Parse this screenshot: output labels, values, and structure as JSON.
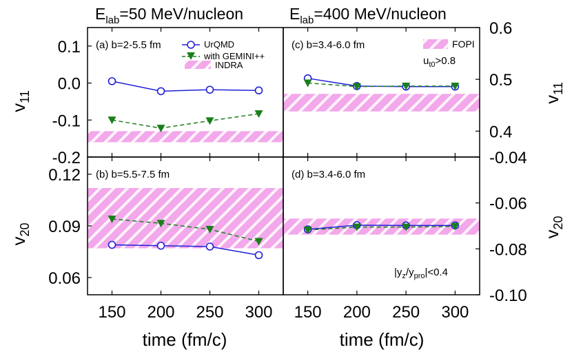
{
  "figure": {
    "col_titles": [
      {
        "base": "E",
        "sub": "lab",
        "rest": "=50 MeV/nucleon"
      },
      {
        "base": "E",
        "sub": "lab",
        "rest": "=400 MeV/nucleon"
      }
    ],
    "xlabel": "time (fm/c)",
    "y_left_top": {
      "base": "v",
      "sub": "11"
    },
    "y_left_bottom": {
      "base": "v",
      "sub": "20"
    },
    "y_right_top": {
      "base": "v",
      "sub": "11"
    },
    "y_right_bottom": {
      "base": "v",
      "sub": "20"
    },
    "legend_left": {
      "urqmd": "UrQMD",
      "gemini": "with GEMINI++",
      "indra": "INDRA"
    },
    "legend_right": {
      "fopi": "FOPI",
      "cut_base": "u",
      "cut_sub": "t0",
      "cut_rest": ">0.8"
    },
    "cut_bottom": {
      "pre": "|y",
      "sub1": "z",
      "mid": "/y",
      "sub2": "pro",
      "rest": "|<0.4"
    }
  },
  "colors": {
    "urqmd": "#1f1fd6",
    "gemini": "#1a7f1a",
    "band": "#f2a8ea",
    "band_stripe": "#ffffff"
  },
  "chart_data": [
    {
      "id": "a",
      "type": "line",
      "label": "(a) b=2-5.5 fm",
      "x": [
        150,
        200,
        250,
        300
      ],
      "xlim": [
        125,
        325
      ],
      "ylim": [
        -0.2,
        0.15
      ],
      "yticks": [
        -0.2,
        -0.1,
        0.0,
        0.1
      ],
      "tick_labels": [
        "-0.2",
        "-0.1",
        "0.0",
        "0.1"
      ],
      "series": [
        {
          "name": "UrQMD",
          "values": [
            0.005,
            -0.022,
            -0.018,
            -0.02
          ]
        },
        {
          "name": "with GEMINI++",
          "values": [
            -0.1,
            -0.122,
            -0.102,
            -0.083
          ]
        }
      ],
      "band": {
        "name": "INDRA",
        "range": [
          -0.16,
          -0.13
        ]
      }
    },
    {
      "id": "c",
      "type": "line",
      "label": "(c) b=3.4-6.0 fm",
      "x": [
        150,
        200,
        250,
        300
      ],
      "xlim": [
        125,
        325
      ],
      "ylim": [
        0.35,
        0.6
      ],
      "yticks": [
        0.4,
        0.5,
        0.6
      ],
      "tick_labels": [
        "0.4",
        "0.5",
        "0.6"
      ],
      "series": [
        {
          "name": "UrQMD",
          "values": [
            0.502,
            0.487,
            0.486,
            0.486
          ]
        },
        {
          "name": "with GEMINI++",
          "values": [
            0.493,
            0.486,
            0.487,
            0.487
          ]
        }
      ],
      "band": {
        "name": "FOPI",
        "range": [
          0.438,
          0.472
        ]
      }
    },
    {
      "id": "b",
      "type": "line",
      "label": "(b) b=5.5-7.5 fm",
      "x": [
        150,
        200,
        250,
        300
      ],
      "xlim": [
        125,
        325
      ],
      "ylim": [
        0.05,
        0.13
      ],
      "yticks": [
        0.06,
        0.09,
        0.12
      ],
      "tick_labels": [
        "0.06",
        "0.09",
        "0.12"
      ],
      "series": [
        {
          "name": "UrQMD",
          "values": [
            0.079,
            0.0785,
            0.078,
            0.073
          ]
        },
        {
          "name": "with GEMINI++",
          "values": [
            0.094,
            0.0915,
            0.088,
            0.081
          ]
        }
      ],
      "band": {
        "name": "INDRA",
        "range": [
          0.077,
          0.112
        ]
      }
    },
    {
      "id": "d",
      "type": "line",
      "label": "(d) b=3.4-6.0 fm",
      "x": [
        150,
        200,
        250,
        300
      ],
      "xlim": [
        125,
        325
      ],
      "ylim": [
        -0.1,
        -0.04
      ],
      "yticks": [
        -0.1,
        -0.08,
        -0.06,
        -0.04
      ],
      "tick_labels": [
        "-0.10",
        "-0.08",
        "-0.06",
        "-0.04"
      ],
      "series": [
        {
          "name": "UrQMD",
          "values": [
            -0.0715,
            -0.0697,
            -0.0698,
            -0.0698
          ]
        },
        {
          "name": "with GEMINI++",
          "values": [
            -0.0718,
            -0.0705,
            -0.0705,
            -0.0702
          ]
        }
      ],
      "band": {
        "name": "FOPI",
        "range": [
          -0.0738,
          -0.0668
        ]
      }
    }
  ]
}
